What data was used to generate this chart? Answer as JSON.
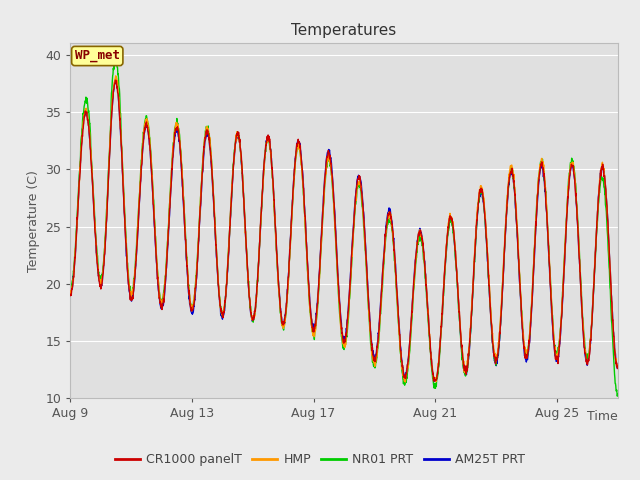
{
  "title": "Temperatures",
  "ylabel": "Temperature (C)",
  "xlabel": "Time",
  "ylim": [
    10,
    41
  ],
  "yticks": [
    10,
    15,
    20,
    25,
    30,
    35,
    40
  ],
  "xtick_labels": [
    "Aug 9",
    "Aug 13",
    "Aug 17",
    "Aug 21",
    "Aug 25"
  ],
  "series_colors": [
    "#cc0000",
    "#ff9900",
    "#00cc00",
    "#0000cc"
  ],
  "series_labels": [
    "CR1000 panelT",
    "HMP",
    "NR01 PRT",
    "AM25T PRT"
  ],
  "bg_color": "#ebebeb",
  "plot_bg_color": "#e0e0e0",
  "annotation_text": "WP_met",
  "annotation_bg": "#ffff99",
  "annotation_border": "#886600",
  "annotation_text_color": "#880000",
  "grid_color": "#ffffff",
  "legend_fontsize": 9,
  "title_fontsize": 11
}
